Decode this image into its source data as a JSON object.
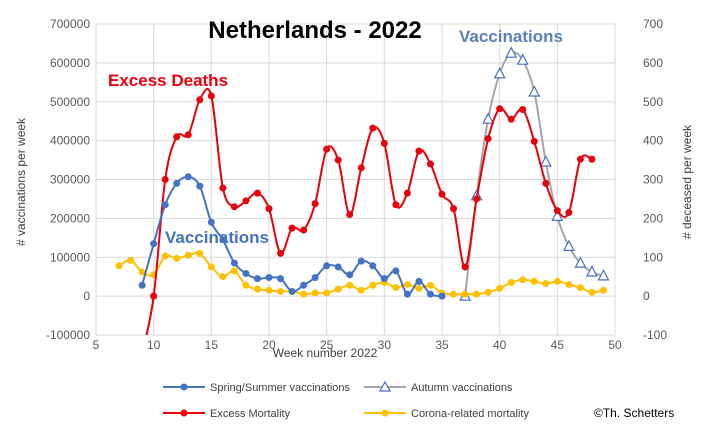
{
  "credit": "©Th. Schetters",
  "chart_data": {
    "type": "line",
    "title": "Netherlands - 2022",
    "xlabel": "Week number 2022",
    "ylabel_left": "# vaccinations per week",
    "ylabel_right": "# deceased per week",
    "xlim": [
      5,
      50
    ],
    "x_ticks": [
      5,
      10,
      15,
      20,
      25,
      30,
      35,
      40,
      45,
      50
    ],
    "ylim_left": [
      -100000,
      700000
    ],
    "y_ticks_left": [
      -100000,
      0,
      100000,
      200000,
      300000,
      400000,
      500000,
      600000,
      700000
    ],
    "ylim_right": [
      -100,
      700
    ],
    "y_ticks_right": [
      -100,
      0,
      100,
      200,
      300,
      400,
      500,
      600,
      700
    ],
    "grid": true,
    "legend_position": "bottom",
    "annotations": [
      {
        "text": "Excess Deaths",
        "color": "#e8000b"
      },
      {
        "text": "Vaccinations",
        "color": "#4472c4"
      },
      {
        "text": "Vaccinations",
        "color": "#5b7fbf"
      }
    ],
    "series": [
      {
        "name": "Spring/Summer vaccinations",
        "axis": "left",
        "color": "#4472c4",
        "marker": "circle",
        "x": [
          9,
          10,
          11,
          12,
          13,
          14,
          15,
          16,
          17,
          18,
          19,
          20,
          21,
          22,
          23,
          24,
          25,
          26,
          27,
          28,
          29,
          30,
          31,
          32,
          33,
          34,
          35
        ],
        "y": [
          28000,
          135000,
          235000,
          290000,
          307000,
          283000,
          190000,
          145000,
          85000,
          58000,
          45000,
          48000,
          45000,
          12000,
          28000,
          48000,
          78000,
          75000,
          55000,
          90000,
          78000,
          45000,
          65000,
          5000,
          38000,
          5000,
          0
        ]
      },
      {
        "name": "Autumn vaccinations",
        "axis": "left",
        "color": "#a5a5a5",
        "marker_color": "#4472c4",
        "marker": "triangle",
        "x": [
          37,
          38,
          39,
          40,
          41,
          42,
          43,
          44,
          45,
          46,
          47,
          48,
          49
        ],
        "y": [
          0,
          258000,
          455000,
          572000,
          625000,
          607000,
          525000,
          345000,
          205000,
          128000,
          85000,
          62000,
          52000
        ]
      },
      {
        "name": "Excess Mortality",
        "axis": "right",
        "color": "#e8000b",
        "marker": "circle",
        "x": [
          9,
          10,
          11,
          12,
          13,
          14,
          15,
          16,
          17,
          18,
          19,
          20,
          21,
          22,
          23,
          24,
          25,
          26,
          27,
          28,
          29,
          30,
          31,
          32,
          33,
          34,
          35,
          36,
          37,
          38,
          39,
          40,
          41,
          42,
          43,
          44,
          45,
          46,
          47,
          48
        ],
        "y": [
          -150,
          0,
          300,
          410,
          415,
          505,
          515,
          278,
          230,
          245,
          265,
          225,
          110,
          175,
          170,
          238,
          378,
          350,
          210,
          330,
          432,
          393,
          235,
          265,
          373,
          340,
          262,
          225,
          75,
          250,
          405,
          482,
          455,
          480,
          398,
          290,
          220,
          215,
          352,
          352
        ]
      },
      {
        "name": "Corona-related mortality",
        "axis": "right",
        "color": "#ffc000",
        "marker": "circle",
        "x": [
          7,
          8,
          9,
          10,
          11,
          12,
          13,
          14,
          15,
          16,
          17,
          18,
          19,
          20,
          21,
          22,
          23,
          24,
          25,
          26,
          27,
          28,
          29,
          30,
          31,
          32,
          33,
          34,
          35,
          36,
          37,
          38,
          39,
          40,
          41,
          42,
          43,
          44,
          45,
          46,
          47,
          48,
          49
        ],
        "y": [
          78,
          92,
          62,
          55,
          103,
          97,
          105,
          110,
          75,
          50,
          65,
          28,
          18,
          15,
          12,
          12,
          5,
          8,
          8,
          18,
          28,
          15,
          28,
          35,
          22,
          30,
          20,
          28,
          8,
          5,
          5,
          5,
          10,
          20,
          35,
          42,
          38,
          32,
          38,
          30,
          22,
          10,
          15
        ]
      }
    ]
  }
}
